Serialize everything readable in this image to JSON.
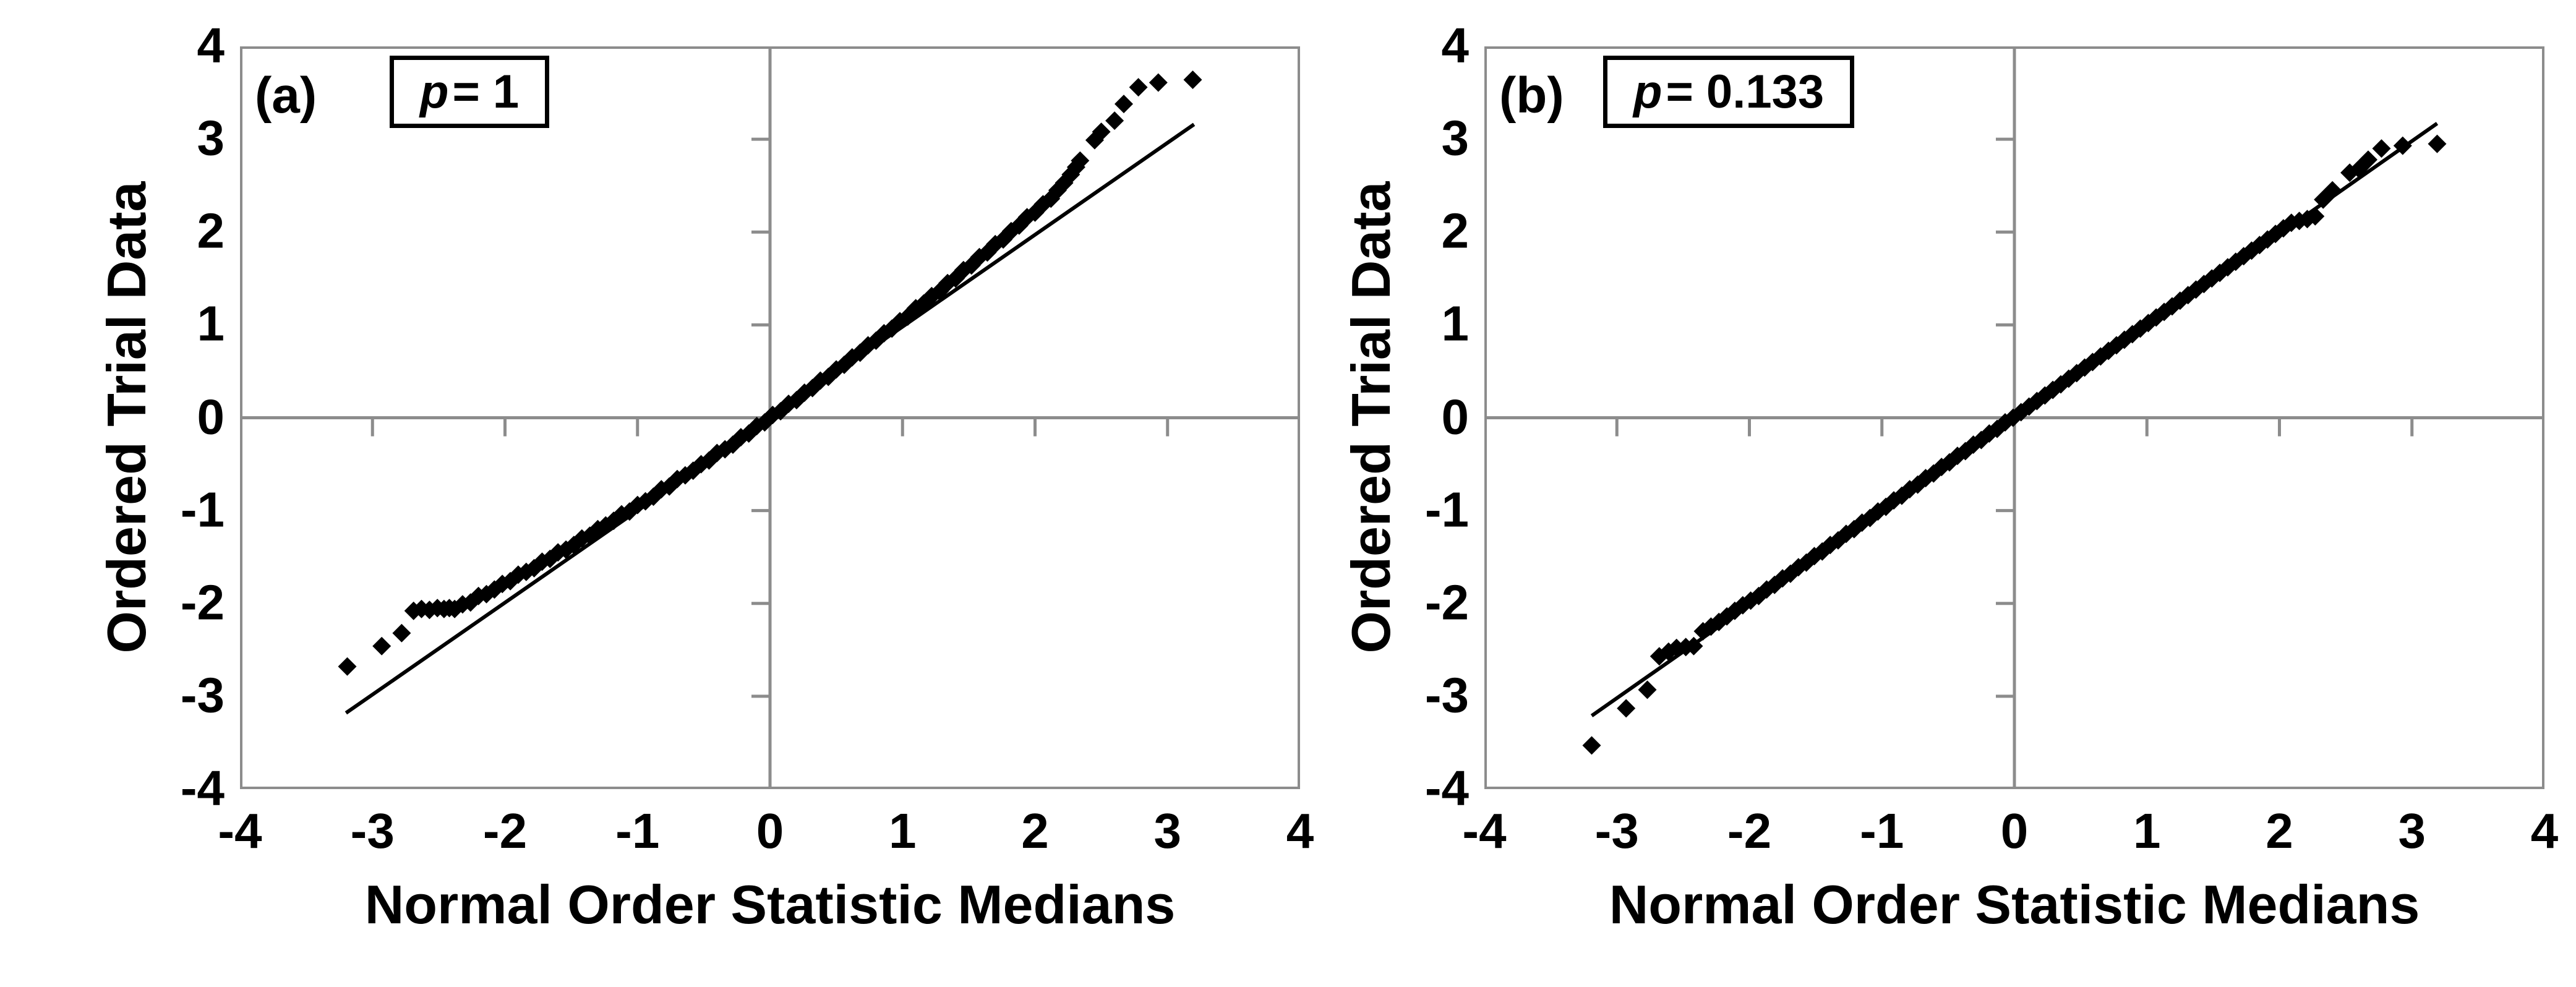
{
  "axes": {
    "x_tick_labels": [
      "-4",
      "-3",
      "-2",
      "-1",
      "0",
      "1",
      "2",
      "3",
      "4"
    ],
    "y_tick_labels": [
      "4",
      "3",
      "2",
      "1",
      "0",
      "-1",
      "-2",
      "-3",
      "-4"
    ]
  },
  "colors": {
    "frame_gray": "#8c8c8c",
    "marker_black": "#000000",
    "reference_line": "#000000"
  },
  "chart_data": [
    {
      "type": "scatter",
      "panel_label": "(a)",
      "annotation_var": "p",
      "annotation_rest": "= 1",
      "xlabel": "Normal Order Statistic Medians",
      "ylabel": "Ordered Trial Data",
      "xlim": [
        -4,
        4
      ],
      "ylim": [
        -4,
        4
      ],
      "marker": "diamond",
      "legend": "none",
      "grid": false,
      "reference_line": {
        "x1": -3.2,
        "y1": -3.18,
        "x2": 3.2,
        "y2": 3.16
      },
      "points": [
        [
          -3.19,
          -2.68
        ],
        [
          -2.93,
          -2.46
        ],
        [
          -2.78,
          -2.32
        ],
        [
          -2.69,
          -2.08
        ],
        [
          -2.63,
          -2.06
        ],
        [
          -2.57,
          -2.07
        ],
        [
          -2.51,
          -2.05
        ],
        [
          -2.46,
          -2.06
        ],
        [
          -2.42,
          -2.05
        ],
        [
          -2.38,
          -2.06
        ],
        [
          -2.32,
          -2.01
        ],
        [
          -2.26,
          -1.99
        ],
        [
          -2.2,
          -1.92
        ],
        [
          -2.14,
          -1.9
        ],
        [
          -2.08,
          -1.85
        ],
        [
          -2.02,
          -1.79
        ],
        [
          -1.96,
          -1.76
        ],
        [
          -1.9,
          -1.69
        ],
        [
          -1.84,
          -1.66
        ],
        [
          -1.78,
          -1.62
        ],
        [
          -1.72,
          -1.55
        ],
        [
          -1.66,
          -1.52
        ],
        [
          -1.6,
          -1.45
        ],
        [
          -1.54,
          -1.42
        ],
        [
          -1.48,
          -1.37
        ],
        [
          -1.42,
          -1.3
        ],
        [
          -1.36,
          -1.27
        ],
        [
          -1.3,
          -1.2
        ],
        [
          -1.24,
          -1.16
        ],
        [
          -1.18,
          -1.11
        ],
        [
          -1.12,
          -1.04
        ],
        [
          -1.06,
          -1.01
        ],
        [
          -1.0,
          -0.94
        ],
        [
          -0.94,
          -0.9
        ],
        [
          -0.88,
          -0.85
        ],
        [
          -0.82,
          -0.77
        ],
        [
          -0.76,
          -0.74
        ],
        [
          -0.7,
          -0.66
        ],
        [
          -0.64,
          -0.62
        ],
        [
          -0.58,
          -0.57
        ],
        [
          -0.52,
          -0.5
        ],
        [
          -0.46,
          -0.46
        ],
        [
          -0.4,
          -0.38
        ],
        [
          -0.34,
          -0.34
        ],
        [
          -0.28,
          -0.29
        ],
        [
          -0.22,
          -0.21
        ],
        [
          -0.16,
          -0.17
        ],
        [
          -0.1,
          -0.09
        ],
        [
          -0.04,
          -0.05
        ],
        [
          0.02,
          0.03
        ],
        [
          0.08,
          0.07
        ],
        [
          0.14,
          0.15
        ],
        [
          0.2,
          0.19
        ],
        [
          0.26,
          0.27
        ],
        [
          0.32,
          0.32
        ],
        [
          0.38,
          0.4
        ],
        [
          0.44,
          0.44
        ],
        [
          0.5,
          0.52
        ],
        [
          0.56,
          0.57
        ],
        [
          0.62,
          0.65
        ],
        [
          0.68,
          0.7
        ],
        [
          0.74,
          0.78
        ],
        [
          0.8,
          0.83
        ],
        [
          0.86,
          0.91
        ],
        [
          0.92,
          0.96
        ],
        [
          0.98,
          1.04
        ],
        [
          1.04,
          1.09
        ],
        [
          1.1,
          1.18
        ],
        [
          1.16,
          1.23
        ],
        [
          1.22,
          1.31
        ],
        [
          1.28,
          1.36
        ],
        [
          1.34,
          1.45
        ],
        [
          1.4,
          1.5
        ],
        [
          1.46,
          1.59
        ],
        [
          1.52,
          1.64
        ],
        [
          1.58,
          1.73
        ],
        [
          1.64,
          1.78
        ],
        [
          1.7,
          1.87
        ],
        [
          1.76,
          1.92
        ],
        [
          1.82,
          2.01
        ],
        [
          1.88,
          2.07
        ],
        [
          1.94,
          2.16
        ],
        [
          2.0,
          2.21
        ],
        [
          2.06,
          2.3
        ],
        [
          2.12,
          2.36
        ],
        [
          2.17,
          2.45
        ],
        [
          2.22,
          2.53
        ],
        [
          2.27,
          2.62
        ],
        [
          2.31,
          2.7
        ],
        [
          2.34,
          2.77
        ],
        [
          2.45,
          2.99
        ],
        [
          2.5,
          3.08
        ],
        [
          2.6,
          3.2
        ],
        [
          2.67,
          3.38
        ],
        [
          2.78,
          3.56
        ],
        [
          2.93,
          3.61
        ],
        [
          3.19,
          3.64
        ]
      ]
    },
    {
      "type": "scatter",
      "panel_label": "(b)",
      "annotation_var": "p",
      "annotation_rest": "= 0.133",
      "xlabel": "Normal Order Statistic Medians",
      "ylabel": "Ordered Trial Data",
      "xlim": [
        -4,
        4
      ],
      "ylim": [
        -4,
        4
      ],
      "marker": "diamond",
      "legend": "none",
      "grid": false,
      "reference_line": {
        "x1": -3.19,
        "y1": -3.21,
        "x2": 3.19,
        "y2": 3.17
      },
      "points": [
        [
          -3.19,
          -3.53
        ],
        [
          -2.93,
          -3.13
        ],
        [
          -2.77,
          -2.93
        ],
        [
          -2.68,
          -2.57
        ],
        [
          -2.61,
          -2.52
        ],
        [
          -2.55,
          -2.48
        ],
        [
          -2.48,
          -2.47
        ],
        [
          -2.42,
          -2.46
        ],
        [
          -2.35,
          -2.3
        ],
        [
          -2.29,
          -2.25
        ],
        [
          -2.23,
          -2.2
        ],
        [
          -2.17,
          -2.14
        ],
        [
          -2.11,
          -2.08
        ],
        [
          -2.05,
          -2.02
        ],
        [
          -1.99,
          -1.97
        ],
        [
          -1.93,
          -1.92
        ],
        [
          -1.87,
          -1.85
        ],
        [
          -1.81,
          -1.8
        ],
        [
          -1.75,
          -1.73
        ],
        [
          -1.69,
          -1.68
        ],
        [
          -1.63,
          -1.61
        ],
        [
          -1.57,
          -1.56
        ],
        [
          -1.51,
          -1.49
        ],
        [
          -1.45,
          -1.44
        ],
        [
          -1.39,
          -1.37
        ],
        [
          -1.33,
          -1.32
        ],
        [
          -1.27,
          -1.25
        ],
        [
          -1.21,
          -1.2
        ],
        [
          -1.15,
          -1.13
        ],
        [
          -1.09,
          -1.08
        ],
        [
          -1.03,
          -1.01
        ],
        [
          -0.97,
          -0.96
        ],
        [
          -0.91,
          -0.89
        ],
        [
          -0.85,
          -0.84
        ],
        [
          -0.79,
          -0.77
        ],
        [
          -0.73,
          -0.72
        ],
        [
          -0.67,
          -0.65
        ],
        [
          -0.61,
          -0.6
        ],
        [
          -0.55,
          -0.53
        ],
        [
          -0.49,
          -0.48
        ],
        [
          -0.43,
          -0.41
        ],
        [
          -0.37,
          -0.36
        ],
        [
          -0.31,
          -0.29
        ],
        [
          -0.25,
          -0.24
        ],
        [
          -0.19,
          -0.17
        ],
        [
          -0.13,
          -0.12
        ],
        [
          -0.07,
          -0.05
        ],
        [
          -0.01,
          0.0
        ],
        [
          0.05,
          0.06
        ],
        [
          0.11,
          0.12
        ],
        [
          0.17,
          0.18
        ],
        [
          0.23,
          0.24
        ],
        [
          0.29,
          0.3
        ],
        [
          0.35,
          0.36
        ],
        [
          0.41,
          0.42
        ],
        [
          0.47,
          0.48
        ],
        [
          0.53,
          0.54
        ],
        [
          0.59,
          0.6
        ],
        [
          0.65,
          0.66
        ],
        [
          0.71,
          0.72
        ],
        [
          0.77,
          0.78
        ],
        [
          0.83,
          0.84
        ],
        [
          0.89,
          0.9
        ],
        [
          0.95,
          0.96
        ],
        [
          1.01,
          1.02
        ],
        [
          1.07,
          1.08
        ],
        [
          1.13,
          1.14
        ],
        [
          1.19,
          1.2
        ],
        [
          1.25,
          1.26
        ],
        [
          1.31,
          1.32
        ],
        [
          1.37,
          1.38
        ],
        [
          1.43,
          1.44
        ],
        [
          1.49,
          1.5
        ],
        [
          1.55,
          1.56
        ],
        [
          1.61,
          1.62
        ],
        [
          1.67,
          1.68
        ],
        [
          1.73,
          1.74
        ],
        [
          1.79,
          1.8
        ],
        [
          1.85,
          1.86
        ],
        [
          1.91,
          1.92
        ],
        [
          1.97,
          1.98
        ],
        [
          2.03,
          2.04
        ],
        [
          2.09,
          2.1
        ],
        [
          2.15,
          2.12
        ],
        [
          2.21,
          2.14
        ],
        [
          2.27,
          2.17
        ],
        [
          2.33,
          2.35
        ],
        [
          2.4,
          2.45
        ],
        [
          2.53,
          2.64
        ],
        [
          2.6,
          2.68
        ],
        [
          2.67,
          2.78
        ],
        [
          2.77,
          2.9
        ],
        [
          2.93,
          2.93
        ],
        [
          3.19,
          2.95
        ]
      ]
    }
  ]
}
